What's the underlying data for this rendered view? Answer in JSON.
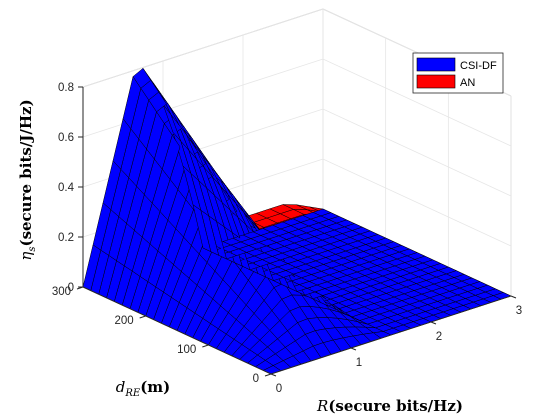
{
  "chart_data": {
    "type": "surface3d",
    "x_axis": {
      "label_main": "R",
      "label_rest": "(secure bits/Hz)",
      "range": [
        0,
        3
      ],
      "ticks": [
        "0",
        "1",
        "2",
        "3"
      ]
    },
    "y_axis": {
      "label_main": "d",
      "label_sub": "RE",
      "label_rest": "(m)",
      "range": [
        0,
        300
      ],
      "ticks": [
        "0",
        "100",
        "200",
        "300"
      ]
    },
    "z_axis": {
      "label_main": "η",
      "label_sub": "s",
      "label_rest": "(secure bits/J/Hz)",
      "range": [
        0,
        0.8
      ],
      "ticks": [
        "0",
        "0.2",
        "0.4",
        "0.6",
        "0.8"
      ]
    },
    "grid": true,
    "legend": {
      "placement": "top-right",
      "entries": [
        "CSI-DF",
        "AN"
      ]
    },
    "series": [
      {
        "name": "CSI-DF",
        "color": "#0000ff",
        "description_peak": {
          "x": 0.7,
          "y": 300,
          "z": 0.82
        },
        "corner_values": {
          "x0_y0": 0.0,
          "x0_y300": 0.0,
          "x3_y0": 0.0,
          "x3_y300": 0.0
        }
      },
      {
        "name": "AN",
        "color": "#ff0000",
        "ridge": [
          {
            "x": 1.0,
            "y": 300,
            "z": 0.06
          },
          {
            "x": 2.0,
            "y": 300,
            "z": 0.05
          },
          {
            "x": 3.0,
            "y": 300,
            "z": 0.0
          }
        ]
      }
    ]
  }
}
